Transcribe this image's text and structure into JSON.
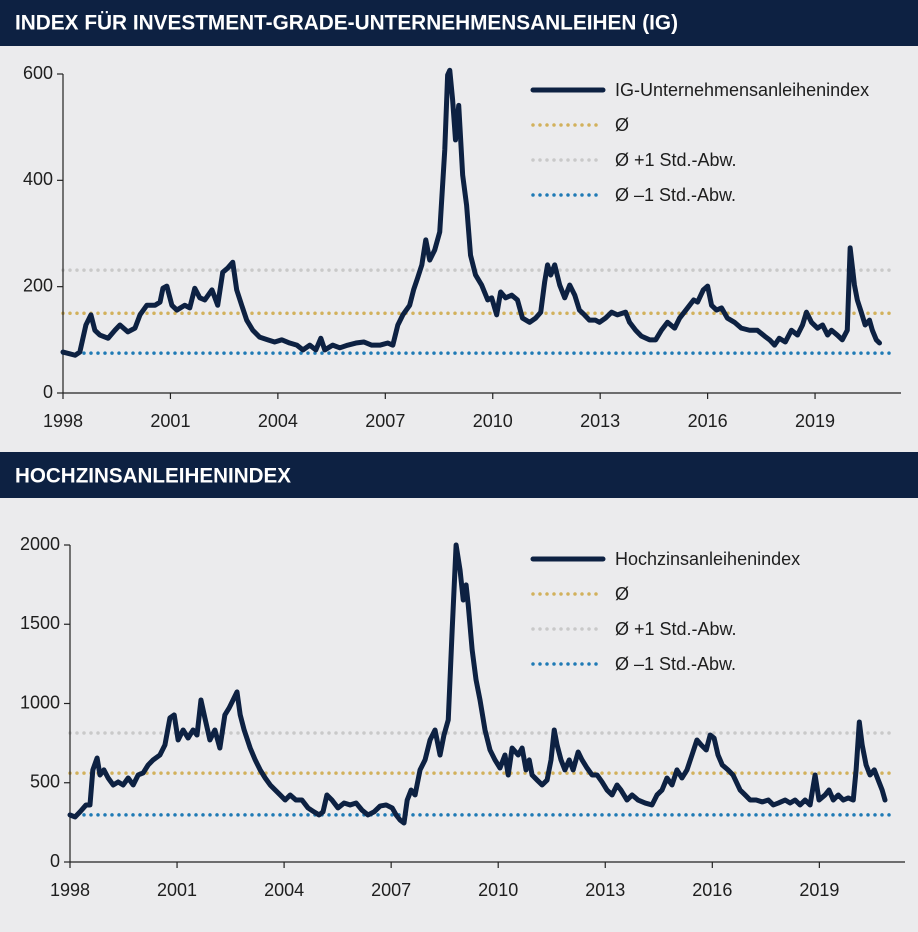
{
  "chart_data": [
    {
      "type": "line",
      "title": "INDEX FÜR INVESTMENT-GRADE-UNTERNEHMENSANLEIHEN (IG)",
      "xlim": [
        1998,
        2021.4
      ],
      "xticks": [
        1998,
        2001,
        2004,
        2007,
        2010,
        2013,
        2016,
        2019
      ],
      "ylim": [
        0,
        600
      ],
      "yticks": [
        0,
        200,
        400,
        600
      ],
      "x": [
        1998.0,
        1998.34,
        1998.47,
        1998.64,
        1998.78,
        1998.89,
        1999.03,
        1999.26,
        1999.45,
        1999.59,
        1999.81,
        2000.01,
        2000.15,
        2000.34,
        2000.57,
        2000.71,
        2000.79,
        2000.9,
        2001.04,
        2001.18,
        2001.4,
        2001.54,
        2001.68,
        2001.82,
        2001.96,
        2002.16,
        2002.32,
        2002.46,
        2002.6,
        2002.74,
        2002.85,
        2002.99,
        2003.13,
        2003.3,
        2003.49,
        2003.72,
        2003.91,
        2004.11,
        2004.33,
        2004.53,
        2004.7,
        2004.89,
        2005.06,
        2005.2,
        2005.31,
        2005.53,
        2005.73,
        2005.95,
        2006.18,
        2006.4,
        2006.62,
        2006.85,
        2007.07,
        2007.21,
        2007.35,
        2007.49,
        2007.68,
        2007.79,
        2007.9,
        2008.02,
        2008.13,
        2008.24,
        2008.38,
        2008.52,
        2008.66,
        2008.74,
        2008.8,
        2008.88,
        2008.96,
        2009.05,
        2009.16,
        2009.27,
        2009.38,
        2009.52,
        2009.69,
        2009.86,
        2009.97,
        2010.11,
        2010.22,
        2010.36,
        2010.53,
        2010.69,
        2010.83,
        2011.03,
        2011.2,
        2011.34,
        2011.45,
        2011.53,
        2011.62,
        2011.73,
        2011.87,
        2012.01,
        2012.15,
        2012.29,
        2012.42,
        2012.56,
        2012.7,
        2012.87,
        2012.98,
        2013.15,
        2013.32,
        2013.48,
        2013.71,
        2013.82,
        2013.99,
        2014.15,
        2014.38,
        2014.55,
        2014.71,
        2014.88,
        2015.08,
        2015.22,
        2015.44,
        2015.61,
        2015.72,
        2015.88,
        2016.0,
        2016.11,
        2016.25,
        2016.39,
        2016.55,
        2016.75,
        2016.94,
        2017.17,
        2017.39,
        2017.59,
        2017.73,
        2017.87,
        2018.0,
        2018.17,
        2018.34,
        2018.51,
        2018.65,
        2018.76,
        2018.9,
        2019.07,
        2019.21,
        2019.35,
        2019.46,
        2019.62,
        2019.76,
        2019.9,
        2019.98,
        2020.1,
        2020.18,
        2020.29,
        2020.4,
        2020.52,
        2020.6,
        2020.71,
        2020.8
      ],
      "series": [
        {
          "name": "IG-Unternehmensanleihenindex",
          "color": "#0d2142",
          "values": [
            77,
            71,
            77,
            128,
            147,
            118,
            109,
            103,
            118,
            128,
            115,
            122,
            147,
            165,
            165,
            171,
            197,
            201,
            165,
            156,
            165,
            160,
            197,
            179,
            175,
            194,
            165,
            227,
            235,
            246,
            194,
            165,
            137,
            118,
            105,
            100,
            96,
            100,
            94,
            90,
            81,
            90,
            81,
            103,
            81,
            90,
            85,
            90,
            94,
            96,
            90,
            90,
            94,
            90,
            128,
            147,
            165,
            194,
            216,
            241,
            288,
            250,
            269,
            303,
            457,
            598,
            607,
            551,
            476,
            541,
            410,
            353,
            259,
            222,
            203,
            175,
            179,
            147,
            190,
            179,
            184,
            175,
            141,
            133,
            141,
            152,
            209,
            241,
            222,
            241,
            203,
            179,
            203,
            184,
            156,
            147,
            137,
            137,
            133,
            141,
            152,
            147,
            152,
            133,
            118,
            107,
            100,
            100,
            118,
            133,
            122,
            141,
            160,
            175,
            171,
            194,
            201,
            165,
            156,
            160,
            141,
            133,
            122,
            118,
            118,
            107,
            100,
            90,
            103,
            96,
            118,
            109,
            128,
            152,
            133,
            122,
            128,
            109,
            118,
            109,
            100,
            118,
            273,
            203,
            175,
            152,
            128,
            137,
            118,
            100,
            94
          ]
        }
      ],
      "reference_lines": [
        {
          "name": "Ø",
          "color": "#d2b15c",
          "value": 150
        },
        {
          "name": "Ø +1 Std.-Abw.",
          "color": "#c9c9c9",
          "value": 231
        },
        {
          "name": "Ø –1 Std.-Abw.",
          "color": "#1f7ab5",
          "value": 75
        }
      ]
    },
    {
      "type": "line",
      "title": "HOCHZINSANLEIHENINDEX",
      "xlim": [
        1998,
        2021.4
      ],
      "xticks": [
        1998,
        2001,
        2004,
        2007,
        2010,
        2013,
        2016,
        2019
      ],
      "ylim": [
        0,
        2000
      ],
      "yticks": [
        0,
        500,
        1000,
        1500,
        2000
      ],
      "x": [
        1998.0,
        1998.14,
        1998.28,
        1998.45,
        1998.56,
        1998.64,
        1998.76,
        1998.84,
        1998.95,
        1999.07,
        1999.21,
        1999.35,
        1999.49,
        1999.63,
        1999.77,
        1999.91,
        2000.05,
        2000.19,
        2000.33,
        2000.52,
        2000.66,
        2000.8,
        2000.92,
        2001.03,
        2001.17,
        2001.31,
        2001.45,
        2001.56,
        2001.67,
        2001.78,
        2001.92,
        2002.06,
        2002.2,
        2002.34,
        2002.46,
        2002.57,
        2002.68,
        2002.77,
        2002.88,
        2003.05,
        2003.19,
        2003.33,
        2003.47,
        2003.61,
        2003.75,
        2003.89,
        2004.03,
        2004.17,
        2004.33,
        2004.5,
        2004.67,
        2004.84,
        2004.98,
        2005.09,
        2005.2,
        2005.34,
        2005.51,
        2005.68,
        2005.85,
        2006.02,
        2006.18,
        2006.35,
        2006.52,
        2006.69,
        2006.86,
        2007.03,
        2007.14,
        2007.25,
        2007.36,
        2007.45,
        2007.56,
        2007.67,
        2007.81,
        2007.95,
        2008.09,
        2008.23,
        2008.37,
        2008.48,
        2008.6,
        2008.71,
        2008.82,
        2008.93,
        2009.02,
        2009.1,
        2009.16,
        2009.27,
        2009.38,
        2009.49,
        2009.63,
        2009.77,
        2009.91,
        2010.05,
        2010.19,
        2010.28,
        2010.39,
        2010.56,
        2010.67,
        2010.78,
        2010.87,
        2010.95,
        2011.09,
        2011.23,
        2011.37,
        2011.48,
        2011.57,
        2011.65,
        2011.76,
        2011.87,
        2011.99,
        2012.1,
        2012.24,
        2012.35,
        2012.49,
        2012.63,
        2012.77,
        2012.91,
        2013.05,
        2013.19,
        2013.33,
        2013.44,
        2013.61,
        2013.75,
        2013.92,
        2014.12,
        2014.31,
        2014.45,
        2014.59,
        2014.73,
        2014.87,
        2015.01,
        2015.15,
        2015.29,
        2015.43,
        2015.57,
        2015.69,
        2015.83,
        2015.94,
        2016.05,
        2016.16,
        2016.28,
        2016.44,
        2016.58,
        2016.78,
        2016.92,
        2017.06,
        2017.23,
        2017.4,
        2017.57,
        2017.71,
        2017.85,
        2018.04,
        2018.18,
        2018.32,
        2018.46,
        2018.6,
        2018.74,
        2018.88,
        2018.99,
        2019.16,
        2019.27,
        2019.39,
        2019.53,
        2019.67,
        2019.81,
        2019.95,
        2020.03,
        2020.12,
        2020.2,
        2020.31,
        2020.42,
        2020.54,
        2020.65,
        2020.76,
        2020.84
      ],
      "series": [
        {
          "name": "Hochzinsanleihenindex",
          "color": "#0d2142",
          "values": [
            297,
            284,
            316,
            360,
            360,
            581,
            656,
            549,
            581,
            530,
            486,
            505,
            486,
            530,
            486,
            549,
            562,
            612,
            644,
            675,
            738,
            909,
            928,
            770,
            833,
            782,
            833,
            801,
            1022,
            909,
            770,
            833,
            719,
            928,
            972,
            1022,
            1073,
            928,
            833,
            719,
            644,
            581,
            530,
            486,
            454,
            423,
            391,
            423,
            391,
            391,
            341,
            316,
            297,
            316,
            423,
            391,
            341,
            372,
            360,
            372,
            328,
            297,
            316,
            353,
            360,
            341,
            297,
            265,
            246,
            391,
            454,
            423,
            581,
            644,
            770,
            833,
            675,
            801,
            896,
            1464,
            2000,
            1843,
            1653,
            1748,
            1622,
            1338,
            1148,
            1022,
            833,
            707,
            644,
            593,
            675,
            549,
            719,
            675,
            719,
            581,
            644,
            549,
            517,
            486,
            517,
            644,
            833,
            738,
            644,
            581,
            644,
            581,
            694,
            644,
            593,
            549,
            549,
            505,
            454,
            423,
            486,
            454,
            391,
            423,
            391,
            372,
            360,
            423,
            454,
            530,
            486,
            581,
            530,
            581,
            675,
            770,
            738,
            707,
            801,
            782,
            675,
            612,
            581,
            549,
            454,
            423,
            391,
            391,
            379,
            391,
            360,
            372,
            391,
            372,
            391,
            360,
            391,
            360,
            549,
            391,
            423,
            454,
            391,
            423,
            391,
            404,
            391,
            581,
            883,
            738,
            612,
            549,
            581,
            517,
            454,
            391
          ]
        }
      ],
      "reference_lines": [
        {
          "name": "Ø",
          "color": "#d2b15c",
          "value": 561
        },
        {
          "name": "Ø +1 Std.-Abw.",
          "color": "#c9c9c9",
          "value": 814
        },
        {
          "name": "Ø –1 Std.-Abw.",
          "color": "#1f7ab5",
          "value": 297
        }
      ]
    }
  ]
}
